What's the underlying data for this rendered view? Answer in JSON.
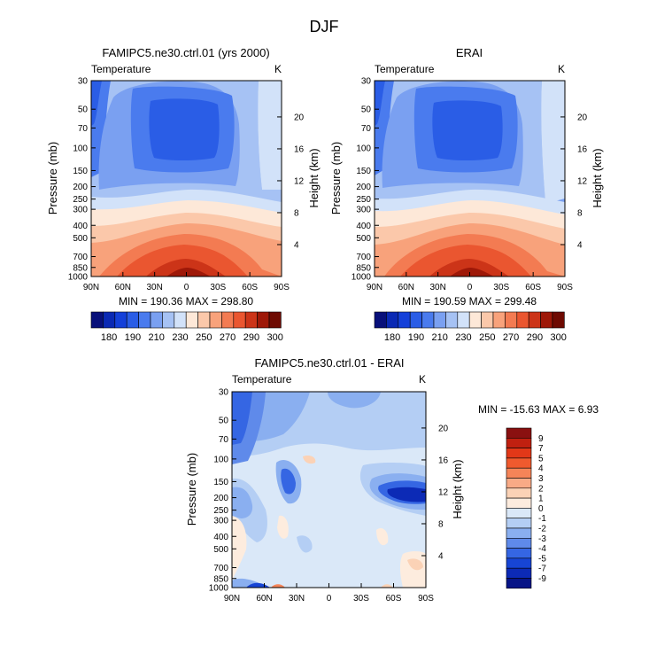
{
  "figure": {
    "title": "DJF"
  },
  "chart_data": [
    {
      "type": "contour",
      "title": "FAMIPC5.ne30.ctrl.01 (yrs 2000)",
      "subtitle_left": "Temperature",
      "subtitle_right": "K",
      "xlabel": "",
      "ylabel": "Pressure (mb)",
      "ylabel_right": "Height (km)",
      "x_ticks": [
        "90N",
        "60N",
        "30N",
        "0",
        "30S",
        "60S",
        "90S"
      ],
      "y_ticks": [
        30,
        50,
        70,
        100,
        150,
        200,
        250,
        300,
        400,
        500,
        700,
        850,
        1000
      ],
      "y_right_ticks": [
        4,
        8,
        12,
        16,
        20
      ],
      "stats_text": "MIN = 190.36   MAX = 298.80",
      "min": 190.36,
      "max": 298.8,
      "colorbar_labels": [
        "180",
        "190",
        "210",
        "230",
        "250",
        "270",
        "290",
        "300"
      ]
    },
    {
      "type": "contour",
      "title": "ERAI",
      "subtitle_left": "Temperature",
      "subtitle_right": "K",
      "xlabel": "",
      "ylabel": "Pressure (mb)",
      "ylabel_right": "Height (km)",
      "x_ticks": [
        "90N",
        "60N",
        "30N",
        "0",
        "30S",
        "60S",
        "90S"
      ],
      "y_ticks": [
        30,
        50,
        70,
        100,
        150,
        200,
        250,
        300,
        400,
        500,
        700,
        850,
        1000
      ],
      "y_right_ticks": [
        4,
        8,
        12,
        16,
        20
      ],
      "stats_text": "MIN = 190.59   MAX = 299.48",
      "min": 190.59,
      "max": 299.48,
      "colorbar_labels": [
        "180",
        "190",
        "210",
        "230",
        "250",
        "270",
        "290",
        "300"
      ]
    },
    {
      "type": "contour",
      "title": "FAMIPC5.ne30.ctrl.01 - ERAI",
      "subtitle_left": "Temperature",
      "subtitle_right": "K",
      "xlabel": "",
      "ylabel": "Pressure (mb)",
      "ylabel_right": "Height (km)",
      "x_ticks": [
        "90N",
        "60N",
        "30N",
        "0",
        "30S",
        "60S",
        "90S"
      ],
      "y_ticks": [
        30,
        50,
        70,
        100,
        150,
        200,
        250,
        300,
        400,
        500,
        700,
        850,
        1000
      ],
      "y_right_ticks": [
        4,
        8,
        12,
        16,
        20
      ],
      "stats_text": "MIN = -15.63   MAX =    6.93",
      "min": -15.63,
      "max": 6.93,
      "colorbar_labels": [
        "9",
        "7",
        "5",
        "4",
        "3",
        "2",
        "1",
        "0",
        "-1",
        "-2",
        "-3",
        "-4",
        "-5",
        "-7",
        "-9"
      ]
    }
  ],
  "colors": {
    "abs_scale": [
      "#08107a",
      "#0a29b4",
      "#1440d9",
      "#2a5de6",
      "#4a7bee",
      "#7aa0f1",
      "#a6c2f4",
      "#d2e2f9",
      "#fde8d8",
      "#fbc8aa",
      "#f8a27b",
      "#f37b52",
      "#ea5630",
      "#cc3418",
      "#9e1808",
      "#6e0a02"
    ],
    "diff_scale": [
      "#8a1010",
      "#c02010",
      "#e23818",
      "#f05a2e",
      "#f58458",
      "#f8aa86",
      "#fbd2b6",
      "#fdecde",
      "#dae8f8",
      "#b4cef4",
      "#8aaff0",
      "#5f8aea",
      "#3566e3",
      "#1745d5",
      "#0c2ab6",
      "#071487"
    ]
  }
}
